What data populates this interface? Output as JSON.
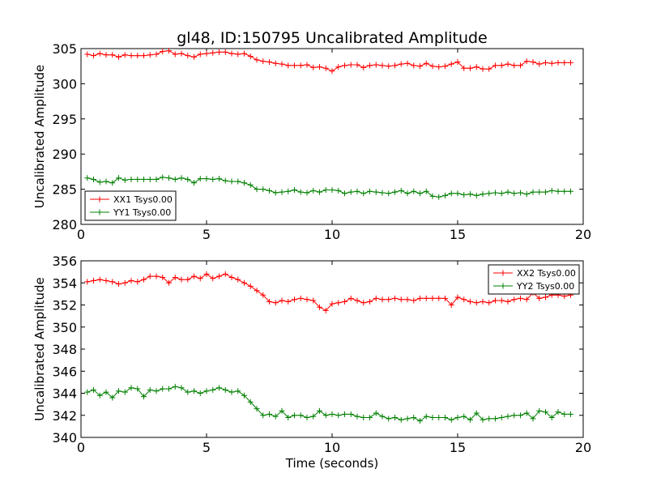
{
  "chart_data": [
    {
      "type": "line",
      "title": "gl48, ID:150795 Uncalibrated Amplitude",
      "xlabel": "",
      "ylabel": "Uncalibrated Amplitude",
      "xlim": [
        0,
        20
      ],
      "ylim": [
        280,
        305
      ],
      "xticks": [
        0,
        5,
        10,
        15,
        20
      ],
      "yticks": [
        280,
        285,
        290,
        295,
        300,
        305
      ],
      "legend_position": "lower-left",
      "series": [
        {
          "name": "XX1 Tsys0.00",
          "color": "#ff0000",
          "x": [
            0.25,
            0.5,
            0.75,
            1.0,
            1.25,
            1.5,
            1.75,
            2.0,
            2.25,
            2.5,
            2.75,
            3.0,
            3.25,
            3.5,
            3.75,
            4.0,
            4.25,
            4.5,
            4.75,
            5.0,
            5.25,
            5.5,
            5.75,
            6.0,
            6.25,
            6.5,
            6.75,
            7.0,
            7.25,
            7.5,
            7.75,
            8.0,
            8.25,
            8.5,
            8.75,
            9.0,
            9.25,
            9.5,
            9.75,
            10.0,
            10.25,
            10.5,
            10.75,
            11.0,
            11.25,
            11.5,
            11.75,
            12.0,
            12.25,
            12.5,
            12.75,
            13.0,
            13.25,
            13.5,
            13.75,
            14.0,
            14.25,
            14.5,
            14.75,
            15.0,
            15.25,
            15.5,
            15.75,
            16.0,
            16.25,
            16.5,
            16.75,
            17.0,
            17.25,
            17.5,
            17.75,
            18.0,
            18.25,
            18.5,
            18.75,
            19.0,
            19.25,
            19.5
          ],
          "y": [
            304.2,
            304.0,
            304.3,
            304.1,
            304.1,
            303.8,
            304.1,
            304.0,
            304.0,
            304.0,
            304.1,
            304.2,
            304.6,
            304.7,
            304.2,
            304.3,
            304.0,
            303.8,
            304.2,
            304.3,
            304.4,
            304.5,
            304.5,
            304.3,
            304.2,
            304.3,
            303.9,
            303.4,
            303.2,
            303.1,
            302.9,
            302.8,
            302.6,
            302.6,
            302.6,
            302.7,
            302.3,
            302.4,
            302.2,
            301.8,
            302.4,
            302.6,
            302.7,
            302.7,
            302.3,
            302.6,
            302.7,
            302.6,
            302.5,
            302.6,
            302.8,
            302.9,
            302.6,
            302.5,
            302.9,
            302.5,
            302.4,
            302.5,
            302.8,
            303.1,
            302.2,
            302.2,
            302.4,
            302.1,
            302.1,
            302.6,
            302.6,
            302.8,
            302.6,
            302.6,
            303.2,
            303.1,
            302.8,
            303.0,
            302.9,
            303.0,
            303.0,
            303.0
          ]
        },
        {
          "name": "YY1 Tsys0.00",
          "color": "#008000",
          "x": [
            0.25,
            0.5,
            0.75,
            1.0,
            1.25,
            1.5,
            1.75,
            2.0,
            2.25,
            2.5,
            2.75,
            3.0,
            3.25,
            3.5,
            3.75,
            4.0,
            4.25,
            4.5,
            4.75,
            5.0,
            5.25,
            5.5,
            5.75,
            6.0,
            6.25,
            6.5,
            6.75,
            7.0,
            7.25,
            7.5,
            7.75,
            8.0,
            8.25,
            8.5,
            8.75,
            9.0,
            9.25,
            9.5,
            9.75,
            10.0,
            10.25,
            10.5,
            10.75,
            11.0,
            11.25,
            11.5,
            11.75,
            12.0,
            12.25,
            12.5,
            12.75,
            13.0,
            13.25,
            13.5,
            13.75,
            14.0,
            14.25,
            14.5,
            14.75,
            15.0,
            15.25,
            15.5,
            15.75,
            16.0,
            16.25,
            16.5,
            16.75,
            17.0,
            17.25,
            17.5,
            17.75,
            18.0,
            18.25,
            18.5,
            18.75,
            19.0,
            19.25,
            19.5
          ],
          "y": [
            286.6,
            286.4,
            286.0,
            286.1,
            285.9,
            286.6,
            286.3,
            286.4,
            286.4,
            286.4,
            286.4,
            286.4,
            286.7,
            286.6,
            286.4,
            286.6,
            286.4,
            285.9,
            286.5,
            286.5,
            286.4,
            286.5,
            286.2,
            286.1,
            286.1,
            285.9,
            285.6,
            285.0,
            285.0,
            284.8,
            284.5,
            284.6,
            284.7,
            284.9,
            284.6,
            284.5,
            284.8,
            284.6,
            284.9,
            284.9,
            284.8,
            284.4,
            284.6,
            284.7,
            284.4,
            284.7,
            284.6,
            284.5,
            284.4,
            284.6,
            284.8,
            284.4,
            284.7,
            284.4,
            284.7,
            284.0,
            283.9,
            284.1,
            284.4,
            284.4,
            284.2,
            284.3,
            284.1,
            284.3,
            284.4,
            284.5,
            284.4,
            284.6,
            284.4,
            284.5,
            284.3,
            284.6,
            284.6,
            284.6,
            284.8,
            284.7,
            284.7,
            284.7
          ]
        }
      ]
    },
    {
      "type": "line",
      "title": "",
      "xlabel": "Time (seconds)",
      "ylabel": "Uncalibrated Amplitude",
      "xlim": [
        0,
        20
      ],
      "ylim": [
        340,
        356
      ],
      "xticks": [
        0,
        5,
        10,
        15,
        20
      ],
      "yticks": [
        340,
        342,
        344,
        346,
        348,
        350,
        352,
        354,
        356
      ],
      "legend_position": "upper-right",
      "series": [
        {
          "name": "XX2 Tsys0.00",
          "color": "#ff0000",
          "x": [
            0.25,
            0.5,
            0.75,
            1.0,
            1.25,
            1.5,
            1.75,
            2.0,
            2.25,
            2.5,
            2.75,
            3.0,
            3.25,
            3.5,
            3.75,
            4.0,
            4.25,
            4.5,
            4.75,
            5.0,
            5.25,
            5.5,
            5.75,
            6.0,
            6.25,
            6.5,
            6.75,
            7.0,
            7.25,
            7.5,
            7.75,
            8.0,
            8.25,
            8.5,
            8.75,
            9.0,
            9.25,
            9.5,
            9.75,
            10.0,
            10.25,
            10.5,
            10.75,
            11.0,
            11.25,
            11.5,
            11.75,
            12.0,
            12.25,
            12.5,
            12.75,
            13.0,
            13.25,
            13.5,
            13.75,
            14.0,
            14.25,
            14.5,
            14.75,
            15.0,
            15.25,
            15.5,
            15.75,
            16.0,
            16.25,
            16.5,
            16.75,
            17.0,
            17.25,
            17.5,
            17.75,
            18.0,
            18.25,
            18.5,
            18.75,
            19.0,
            19.25,
            19.5
          ],
          "y": [
            354.1,
            354.2,
            354.3,
            354.2,
            354.1,
            353.9,
            354.0,
            354.2,
            354.1,
            354.3,
            354.6,
            354.6,
            354.5,
            354.0,
            354.5,
            354.3,
            354.3,
            354.6,
            354.4,
            354.8,
            354.4,
            354.6,
            354.8,
            354.5,
            354.3,
            354.0,
            353.7,
            353.3,
            352.9,
            352.3,
            352.2,
            352.4,
            352.3,
            352.5,
            352.6,
            352.5,
            352.4,
            351.8,
            351.5,
            352.1,
            352.2,
            352.3,
            352.6,
            352.4,
            352.2,
            352.3,
            352.6,
            352.5,
            352.5,
            352.6,
            352.5,
            352.5,
            352.4,
            352.6,
            352.6,
            352.6,
            352.6,
            352.6,
            352.0,
            352.7,
            352.5,
            352.3,
            352.2,
            352.3,
            352.2,
            352.4,
            352.4,
            352.3,
            352.5,
            352.6,
            352.5,
            353.1,
            352.6,
            352.7,
            352.9,
            352.9,
            352.8,
            352.9
          ]
        },
        {
          "name": "YY2 Tsys0.00",
          "color": "#008000",
          "x": [
            0.25,
            0.5,
            0.75,
            1.0,
            1.25,
            1.5,
            1.75,
            2.0,
            2.25,
            2.5,
            2.75,
            3.0,
            3.25,
            3.5,
            3.75,
            4.0,
            4.25,
            4.5,
            4.75,
            5.0,
            5.25,
            5.5,
            5.75,
            6.0,
            6.25,
            6.5,
            6.75,
            7.0,
            7.25,
            7.5,
            7.75,
            8.0,
            8.25,
            8.5,
            8.75,
            9.0,
            9.25,
            9.5,
            9.75,
            10.0,
            10.25,
            10.5,
            10.75,
            11.0,
            11.25,
            11.5,
            11.75,
            12.0,
            12.25,
            12.5,
            12.75,
            13.0,
            13.25,
            13.5,
            13.75,
            14.0,
            14.25,
            14.5,
            14.75,
            15.0,
            15.25,
            15.5,
            15.75,
            16.0,
            16.25,
            16.5,
            16.75,
            17.0,
            17.25,
            17.5,
            17.75,
            18.0,
            18.25,
            18.5,
            18.75,
            19.0,
            19.25,
            19.5
          ],
          "y": [
            344.1,
            344.3,
            343.8,
            344.1,
            343.6,
            344.2,
            344.1,
            344.5,
            344.4,
            343.7,
            344.3,
            344.2,
            344.4,
            344.4,
            344.6,
            344.5,
            344.1,
            344.2,
            344.0,
            344.2,
            344.3,
            344.5,
            344.3,
            344.1,
            344.2,
            343.8,
            343.2,
            342.6,
            342.0,
            342.1,
            341.9,
            342.4,
            341.8,
            342.0,
            342.0,
            341.8,
            341.9,
            342.4,
            342.0,
            342.1,
            342.0,
            342.1,
            342.1,
            341.9,
            341.8,
            341.8,
            342.2,
            341.9,
            341.7,
            341.8,
            341.6,
            341.7,
            341.8,
            341.5,
            341.9,
            341.8,
            341.8,
            341.8,
            341.6,
            341.8,
            341.9,
            341.6,
            342.2,
            341.6,
            341.7,
            341.7,
            341.8,
            341.9,
            342.0,
            342.0,
            342.2,
            341.7,
            342.4,
            342.3,
            341.8,
            342.3,
            342.1,
            342.1
          ]
        }
      ]
    }
  ]
}
